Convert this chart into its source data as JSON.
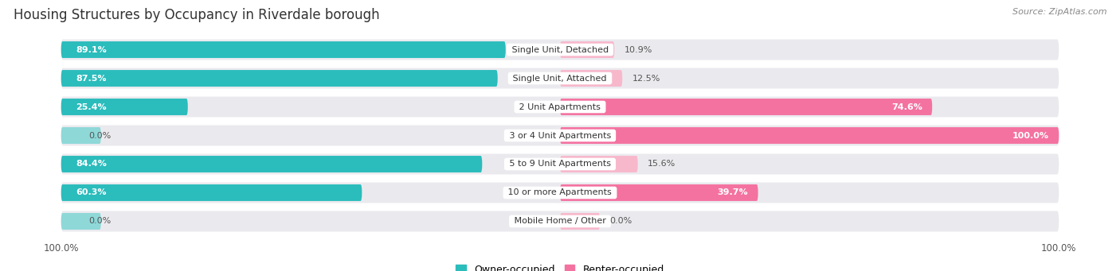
{
  "title": "Housing Structures by Occupancy in Riverdale borough",
  "source": "Source: ZipAtlas.com",
  "categories": [
    "Single Unit, Detached",
    "Single Unit, Attached",
    "2 Unit Apartments",
    "3 or 4 Unit Apartments",
    "5 to 9 Unit Apartments",
    "10 or more Apartments",
    "Mobile Home / Other"
  ],
  "owner_pct": [
    89.1,
    87.5,
    25.4,
    0.0,
    84.4,
    60.3,
    0.0
  ],
  "renter_pct": [
    10.9,
    12.5,
    74.6,
    100.0,
    15.6,
    39.7,
    0.0
  ],
  "owner_color": "#2BBCBC",
  "owner_color_light": "#8ED8D8",
  "renter_color": "#F472A0",
  "renter_color_light": "#F8B8CC",
  "bg_row_color": "#EAEAEE",
  "title_fontsize": 12,
  "label_fontsize": 8,
  "category_fontsize": 8,
  "source_fontsize": 8,
  "legend_fontsize": 9
}
